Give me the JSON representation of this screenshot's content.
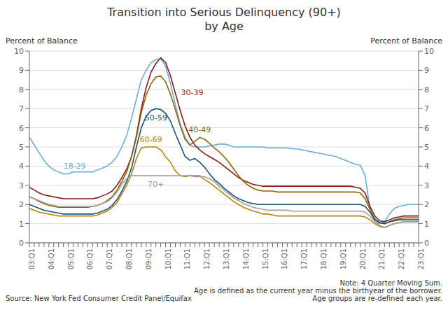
{
  "chart_data": {
    "type": "line",
    "title": "Transition into Serious Delinquency (90+)",
    "subtitle": "by Age",
    "ylabel": "Percent of Balance",
    "y2label": "Percent of Balance",
    "annotations": [
      "Source: New York Fed Consumer Credit Panel/Equifax",
      "Note: 4 Quarter Moving Sum.",
      "Age is defined as the current year minus the birthyear of the borrower.",
      "Age groups are re-defined each year."
    ],
    "categories": [
      "03:Q1",
      null,
      null,
      null,
      "04:Q1",
      null,
      null,
      null,
      "05:Q1",
      null,
      null,
      null,
      "06:Q1",
      null,
      null,
      null,
      "07:Q1",
      null,
      null,
      null,
      "08:Q1",
      null,
      null,
      null,
      "09:Q1",
      null,
      null,
      null,
      "10:Q1",
      null,
      null,
      null,
      "11:Q1",
      null,
      null,
      null,
      "12:Q1",
      null,
      null,
      null,
      "13:Q1",
      null,
      null,
      null,
      "14:Q1",
      null,
      null,
      null,
      "15:Q1",
      null,
      null,
      null,
      "16:Q1",
      null,
      null,
      null,
      "17:Q1",
      null,
      null,
      null,
      "18:Q1",
      null,
      null,
      null,
      "19:Q1",
      null,
      null,
      null,
      "20:Q1",
      null,
      null,
      null,
      "21:Q1",
      null,
      null,
      null,
      "22:Q1",
      null,
      null,
      null,
      "23:Q1"
    ],
    "series": [
      {
        "name": "18-29",
        "color": "#6BAED6",
        "values": [
          5.5,
          5.1,
          4.7,
          4.3,
          4.0,
          3.8,
          3.7,
          3.6,
          3.6,
          3.7,
          3.7,
          3.7,
          3.7,
          3.7,
          3.8,
          3.9,
          4.0,
          4.2,
          4.5,
          5.0,
          5.6,
          6.5,
          7.5,
          8.5,
          9.0,
          9.4,
          9.55,
          9.6,
          9.2,
          8.3,
          7.2,
          6.2,
          5.5,
          5.1,
          5.0,
          5.0,
          5.0,
          5.05,
          5.1,
          5.15,
          5.15,
          5.1,
          5.0,
          5.0,
          5.0,
          5.0,
          5.0,
          5.0,
          5.0,
          4.95,
          4.95,
          4.95,
          4.95,
          4.95,
          4.9,
          4.9,
          4.85,
          4.8,
          4.75,
          4.7,
          4.65,
          4.6,
          4.55,
          4.5,
          4.4,
          4.3,
          4.2,
          4.1,
          4.05,
          3.5,
          1.8,
          1.1,
          1.0,
          1.1,
          1.5,
          1.8,
          1.9,
          1.95,
          2.0,
          2.0,
          2.0
        ]
      },
      {
        "name": "30-39",
        "color": "#8B1A1A",
        "values": [
          2.9,
          2.75,
          2.6,
          2.5,
          2.45,
          2.4,
          2.35,
          2.3,
          2.3,
          2.3,
          2.3,
          2.3,
          2.3,
          2.3,
          2.35,
          2.45,
          2.55,
          2.7,
          3.0,
          3.4,
          3.85,
          4.5,
          5.6,
          7.0,
          8.1,
          8.9,
          9.35,
          9.65,
          9.4,
          8.7,
          7.8,
          6.9,
          6.1,
          5.5,
          5.1,
          4.85,
          4.65,
          4.5,
          4.35,
          4.2,
          4.0,
          3.8,
          3.6,
          3.4,
          3.25,
          3.15,
          3.05,
          3.0,
          2.95,
          2.95,
          2.95,
          2.95,
          2.95,
          2.95,
          2.95,
          2.95,
          2.95,
          2.95,
          2.95,
          2.95,
          2.95,
          2.95,
          2.95,
          2.95,
          2.95,
          2.95,
          2.95,
          2.9,
          2.85,
          2.6,
          1.9,
          1.4,
          1.15,
          1.1,
          1.2,
          1.3,
          1.35,
          1.4,
          1.4,
          1.4,
          1.4
        ]
      },
      {
        "name": "40-49",
        "color": "#8B6508",
        "values": [
          2.4,
          2.3,
          2.15,
          2.05,
          1.95,
          1.9,
          1.85,
          1.85,
          1.85,
          1.85,
          1.85,
          1.85,
          1.85,
          1.9,
          1.95,
          2.05,
          2.2,
          2.4,
          2.75,
          3.2,
          3.7,
          4.5,
          5.5,
          6.8,
          7.7,
          8.3,
          8.65,
          8.7,
          8.4,
          7.75,
          6.95,
          6.1,
          5.4,
          5.1,
          5.3,
          5.5,
          5.4,
          5.2,
          4.95,
          4.75,
          4.5,
          4.2,
          3.85,
          3.5,
          3.2,
          3.0,
          2.85,
          2.75,
          2.7,
          2.7,
          2.7,
          2.65,
          2.65,
          2.65,
          2.65,
          2.65,
          2.65,
          2.65,
          2.65,
          2.65,
          2.65,
          2.65,
          2.65,
          2.65,
          2.65,
          2.65,
          2.65,
          2.65,
          2.6,
          2.3,
          1.75,
          1.25,
          1.05,
          1.0,
          1.1,
          1.2,
          1.25,
          1.3,
          1.3,
          1.3,
          1.3
        ]
      },
      {
        "name": "50-59",
        "color": "#1A5276",
        "values": [
          2.0,
          1.9,
          1.8,
          1.7,
          1.65,
          1.6,
          1.55,
          1.5,
          1.5,
          1.5,
          1.5,
          1.5,
          1.5,
          1.5,
          1.55,
          1.65,
          1.75,
          1.95,
          2.25,
          2.7,
          3.2,
          3.9,
          5.0,
          6.0,
          6.6,
          6.9,
          7.0,
          6.95,
          6.75,
          6.35,
          5.7,
          5.1,
          4.5,
          4.3,
          4.4,
          4.2,
          3.95,
          3.6,
          3.3,
          3.1,
          2.85,
          2.65,
          2.45,
          2.3,
          2.2,
          2.1,
          2.05,
          2.0,
          2.0,
          2.0,
          2.0,
          2.0,
          2.0,
          2.0,
          2.0,
          2.0,
          2.0,
          2.0,
          2.0,
          2.0,
          2.0,
          2.0,
          2.0,
          2.0,
          2.0,
          2.0,
          2.0,
          2.0,
          2.0,
          1.9,
          1.6,
          1.2,
          1.05,
          1.0,
          1.1,
          1.15,
          1.2,
          1.2,
          1.2,
          1.2,
          1.2
        ]
      },
      {
        "name": "60-69",
        "color": "#B8860B",
        "values": [
          1.8,
          1.7,
          1.6,
          1.55,
          1.5,
          1.45,
          1.4,
          1.4,
          1.4,
          1.4,
          1.4,
          1.4,
          1.4,
          1.4,
          1.45,
          1.55,
          1.65,
          1.85,
          2.1,
          2.55,
          3.0,
          3.6,
          4.4,
          4.95,
          5.0,
          5.0,
          5.0,
          4.85,
          4.5,
          4.2,
          3.75,
          3.5,
          3.45,
          3.5,
          3.5,
          3.5,
          3.3,
          3.15,
          2.95,
          2.75,
          2.55,
          2.35,
          2.15,
          2.0,
          1.85,
          1.75,
          1.65,
          1.6,
          1.5,
          1.5,
          1.45,
          1.4,
          1.4,
          1.4,
          1.4,
          1.4,
          1.4,
          1.4,
          1.4,
          1.4,
          1.4,
          1.4,
          1.4,
          1.4,
          1.4,
          1.4,
          1.4,
          1.4,
          1.4,
          1.35,
          1.2,
          1.0,
          0.85,
          0.8,
          0.9,
          1.0,
          1.05,
          1.1,
          1.1,
          1.1,
          1.1
        ]
      },
      {
        "name": "70+",
        "color": "#A0A0A0",
        "values": [
          2.4,
          2.3,
          2.2,
          2.1,
          2.0,
          1.95,
          1.9,
          1.9,
          1.9,
          1.9,
          1.9,
          1.9,
          1.9,
          1.9,
          1.95,
          2.05,
          2.15,
          2.35,
          2.65,
          3.05,
          3.35,
          3.5,
          3.5,
          3.5,
          3.5,
          3.5,
          3.5,
          3.5,
          3.5,
          3.5,
          3.5,
          3.5,
          3.5,
          3.5,
          3.45,
          3.45,
          3.45,
          3.35,
          3.2,
          2.95,
          2.75,
          2.55,
          2.35,
          2.2,
          2.05,
          1.95,
          1.85,
          1.8,
          1.75,
          1.7,
          1.7,
          1.7,
          1.7,
          1.7,
          1.65,
          1.65,
          1.65,
          1.65,
          1.65,
          1.65,
          1.65,
          1.65,
          1.65,
          1.65,
          1.65,
          1.65,
          1.65,
          1.65,
          1.65,
          1.6,
          1.4,
          1.1,
          0.9,
          0.8,
          0.9,
          1.0,
          1.05,
          1.1,
          1.1,
          1.1,
          1.1
        ]
      }
    ],
    "ylim": [
      0,
      10
    ],
    "yticks": [
      0,
      1,
      2,
      3,
      4,
      5,
      6,
      7,
      8,
      9,
      10
    ],
    "y2lim": [
      0,
      10
    ],
    "y2ticks": [
      0,
      1,
      2,
      3,
      4,
      5,
      6,
      7,
      8,
      9,
      10
    ],
    "grid": true
  }
}
